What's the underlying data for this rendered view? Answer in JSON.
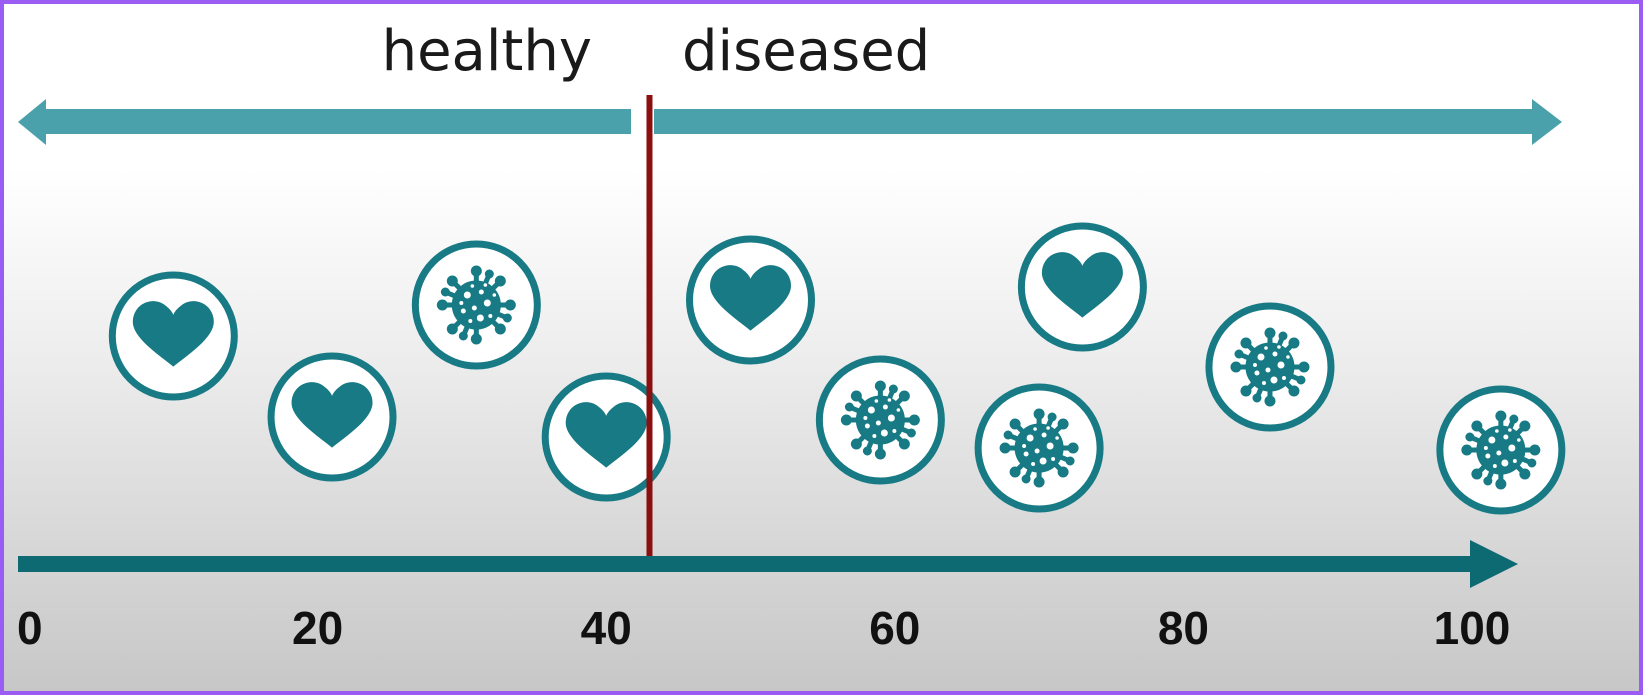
{
  "diagram": {
    "left_label": "healthy",
    "right_label": "diseased",
    "threshold": 43,
    "axis": {
      "min": 0,
      "max": 100,
      "ticks": [
        {
          "value": 0,
          "label": "0"
        },
        {
          "value": 20,
          "label": "20"
        },
        {
          "value": 40,
          "label": "40"
        },
        {
          "value": 60,
          "label": "60"
        },
        {
          "value": 80,
          "label": "80"
        },
        {
          "value": 100,
          "label": "100"
        }
      ]
    },
    "samples": [
      {
        "value": 10,
        "kind": "heart-icon"
      },
      {
        "value": 21,
        "kind": "heart-icon"
      },
      {
        "value": 31,
        "kind": "virus-icon"
      },
      {
        "value": 40,
        "kind": "heart-icon"
      },
      {
        "value": 50,
        "kind": "heart-icon"
      },
      {
        "value": 59,
        "kind": "virus-icon"
      },
      {
        "value": 70,
        "kind": "virus-icon"
      },
      {
        "value": 73,
        "kind": "heart-icon"
      },
      {
        "value": 86,
        "kind": "virus-icon"
      },
      {
        "value": 102,
        "kind": "virus-icon"
      }
    ],
    "colors": {
      "teal": "#177a84",
      "light_teal": "#4aa1ab",
      "axis": "#0e6a72",
      "threshold_line": "#8b0f0f"
    }
  }
}
